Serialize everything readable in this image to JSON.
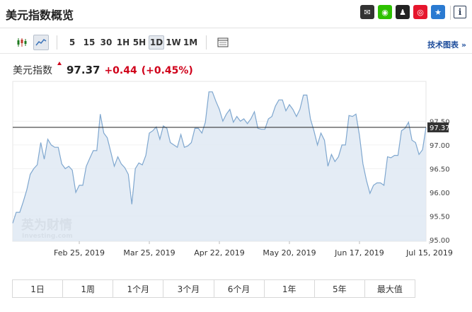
{
  "header": {
    "title": "美元指数概览",
    "share": [
      {
        "name": "email-icon",
        "glyph": "✉",
        "color": "#333333"
      },
      {
        "name": "wechat-icon",
        "glyph": "◉",
        "color": "#2dc100"
      },
      {
        "name": "qq-icon",
        "glyph": "♟",
        "color": "#222222"
      },
      {
        "name": "weibo-icon",
        "glyph": "◎",
        "color": "#e6162d"
      },
      {
        "name": "favorite-icon",
        "glyph": "★",
        "color": "#2a7ad1"
      }
    ],
    "info": "i"
  },
  "toolbar": {
    "intervals": [
      "5",
      "15",
      "30",
      "1H",
      "5H",
      "1D",
      "1W",
      "1M"
    ],
    "active_interval": "1D",
    "tech_chart_label": "技术图表 »"
  },
  "quote": {
    "name": "美元指数",
    "price": "97.37",
    "change": "+0.44",
    "change_pct": "(+0.45%)",
    "up_color": "#d0021b"
  },
  "watermark": {
    "brand_cn": "英为财情",
    "brand_en": "Investing.com"
  },
  "chart_data": {
    "type": "area",
    "y_ticks": [
      "97.50",
      "97.00",
      "96.50",
      "96.00",
      "95.50",
      "95.00"
    ],
    "ylim": [
      94.97,
      98.34
    ],
    "x_labels": [
      {
        "label": "Feb 25, 2019",
        "index": 19
      },
      {
        "label": "Mar 25, 2019",
        "index": 39
      },
      {
        "label": "Apr 22, 2019",
        "index": 59
      },
      {
        "label": "May 20, 2019",
        "index": 79
      },
      {
        "label": "Jun 17, 2019",
        "index": 99
      },
      {
        "label": "Jul 15, 2019",
        "index": 119
      }
    ],
    "last_value": 97.37,
    "last_label": "97.37",
    "values": [
      95.35,
      95.58,
      95.58,
      95.8,
      96.05,
      96.38,
      96.5,
      96.58,
      97.05,
      96.7,
      97.12,
      97.0,
      96.95,
      96.95,
      96.6,
      96.5,
      96.55,
      96.47,
      96.0,
      96.15,
      96.15,
      96.55,
      96.72,
      96.88,
      96.88,
      97.65,
      97.25,
      97.15,
      96.85,
      96.55,
      96.75,
      96.6,
      96.52,
      96.38,
      95.75,
      96.5,
      96.62,
      96.58,
      96.78,
      97.25,
      97.3,
      97.38,
      97.12,
      97.4,
      97.35,
      97.05,
      97.0,
      96.95,
      97.22,
      96.95,
      96.98,
      97.05,
      97.35,
      97.35,
      97.25,
      97.48,
      98.12,
      98.12,
      97.92,
      97.75,
      97.5,
      97.65,
      97.75,
      97.48,
      97.6,
      97.5,
      97.55,
      97.45,
      97.55,
      97.7,
      97.35,
      97.33,
      97.33,
      97.55,
      97.6,
      97.82,
      97.95,
      97.95,
      97.72,
      97.85,
      97.75,
      97.6,
      97.75,
      98.05,
      98.05,
      97.55,
      97.3,
      97.0,
      97.25,
      97.1,
      96.55,
      96.8,
      96.65,
      96.75,
      97.0,
      97.0,
      97.62,
      97.6,
      97.65,
      97.2,
      96.6,
      96.25,
      95.98,
      96.15,
      96.2,
      96.2,
      96.15,
      96.75,
      96.73,
      96.78,
      96.78,
      97.3,
      97.35,
      97.48,
      97.1,
      97.05,
      96.8,
      96.9,
      97.37
    ]
  },
  "ranges": [
    "1日",
    "1周",
    "1个月",
    "3个月",
    "6个月",
    "1年",
    "5年",
    "最大值"
  ],
  "active_range": "最大值"
}
